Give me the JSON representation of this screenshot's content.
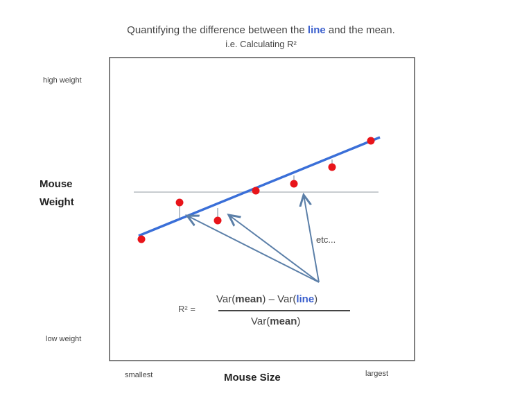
{
  "title": {
    "line1_pre": "Quantifying the difference between the ",
    "line1_highlight": "line",
    "line1_post": " and the mean.",
    "line2": "i.e. Calculating R²"
  },
  "y_axis": {
    "high": "high weight",
    "label_line1": "Mouse",
    "label_line2": "Weight",
    "low": "low weight"
  },
  "x_axis": {
    "low": "smallest",
    "label": "Mouse Size",
    "high": "largest"
  },
  "annotation": "etc...",
  "formula": {
    "lhs": "R² =",
    "num_pre": "Var(",
    "num_mean": "mean",
    "num_mid": ") – Var(",
    "num_line": "line",
    "num_post": ")",
    "den_pre": "Var(",
    "den_mean": "mean",
    "den_post": ")"
  },
  "colors": {
    "line": "#3a6fd8",
    "points": "#e8141a",
    "mean": "#c8ccd0",
    "arrows": "#5b7fa8",
    "highlight": "#3a5fcd"
  }
}
